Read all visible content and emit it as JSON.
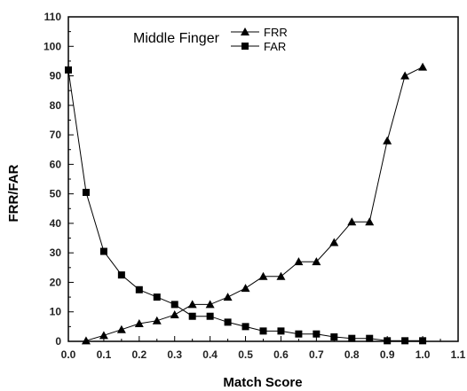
{
  "chart_data": {
    "type": "line",
    "xlabel": "Match Score",
    "ylabel": "FRR/FAR",
    "xlim": [
      0.0,
      1.1
    ],
    "ylim": [
      0,
      110
    ],
    "x_ticks": [
      "0.0",
      "0.1",
      "0.2",
      "0.3",
      "0.4",
      "0.5",
      "0.6",
      "0.7",
      "0.8",
      "0.9",
      "1.0",
      "1.1"
    ],
    "y_ticks": [
      "0",
      "10",
      "20",
      "30",
      "40",
      "50",
      "60",
      "70",
      "80",
      "90",
      "100",
      "110"
    ],
    "grid": false,
    "legend": {
      "title": "Middle Finger",
      "placement": "top-center",
      "entries": [
        "FRR",
        "FAR"
      ]
    },
    "series": [
      {
        "name": "FRR",
        "marker": "triangle",
        "color": "#000000",
        "x": [
          0.05,
          0.1,
          0.15,
          0.2,
          0.25,
          0.3,
          0.35,
          0.4,
          0.45,
          0.5,
          0.55,
          0.6,
          0.65,
          0.7,
          0.75,
          0.8,
          0.85,
          0.9,
          0.95,
          1.0
        ],
        "y": [
          0.2,
          2,
          4,
          6,
          7,
          9,
          12.5,
          12.5,
          15,
          18,
          22,
          22,
          27,
          27,
          33.5,
          40.5,
          40.5,
          68,
          90,
          93
        ]
      },
      {
        "name": "FAR",
        "marker": "square",
        "color": "#000000",
        "x": [
          0.0,
          0.05,
          0.1,
          0.15,
          0.2,
          0.25,
          0.3,
          0.35,
          0.4,
          0.45,
          0.5,
          0.55,
          0.6,
          0.65,
          0.7,
          0.75,
          0.8,
          0.85,
          0.9,
          0.95,
          1.0
        ],
        "y": [
          92,
          50.5,
          30.5,
          22.5,
          17.5,
          15,
          12.5,
          8.5,
          8.5,
          6.5,
          5,
          3.5,
          3.5,
          2.5,
          2.5,
          1.5,
          1,
          1,
          0.2,
          0.2,
          0.2
        ]
      }
    ]
  }
}
